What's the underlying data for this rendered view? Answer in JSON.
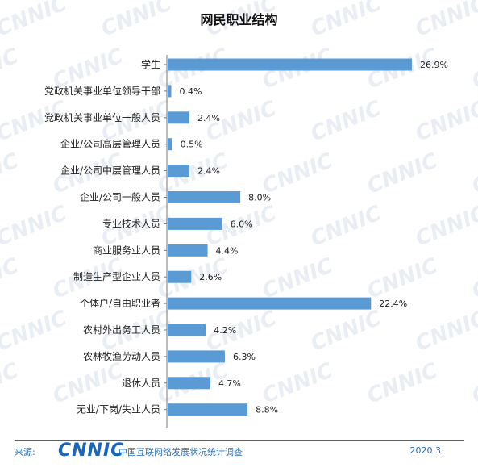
{
  "watermark": "CNNIC",
  "chart_data": {
    "type": "bar",
    "orientation": "horizontal",
    "title": "网民职业结构",
    "categories": [
      "学生",
      "党政机关事业单位领导干部",
      "党政机关事业单位一般人员",
      "企业/公司高层管理人员",
      "企业/公司中层管理人员",
      "企业/公司一般人员",
      "专业技术人员",
      "商业服务业人员",
      "制造生产型企业人员",
      "个体户/自由职业者",
      "农村外出务工人员",
      "农林牧渔劳动人员",
      "退休人员",
      "无业/下岗/失业人员"
    ],
    "values": [
      26.9,
      0.4,
      2.4,
      0.5,
      2.4,
      8.0,
      6.0,
      4.4,
      2.6,
      22.4,
      4.2,
      6.3,
      4.7,
      8.8
    ],
    "value_labels": [
      "26.9%",
      "0.4%",
      "2.4%",
      "0.5%",
      "2.4%",
      "8.0%",
      "6.0%",
      "4.4%",
      "2.6%",
      "22.4%",
      "4.2%",
      "6.3%",
      "4.7%",
      "8.8%"
    ],
    "bar_color": "#5b9bd5",
    "grid": false,
    "legend": false
  },
  "footer": {
    "source_label": "来源:",
    "logo_text": "CNNIC",
    "source_text": "中国互联网络发展状况统计调查",
    "date": "2020.3"
  }
}
